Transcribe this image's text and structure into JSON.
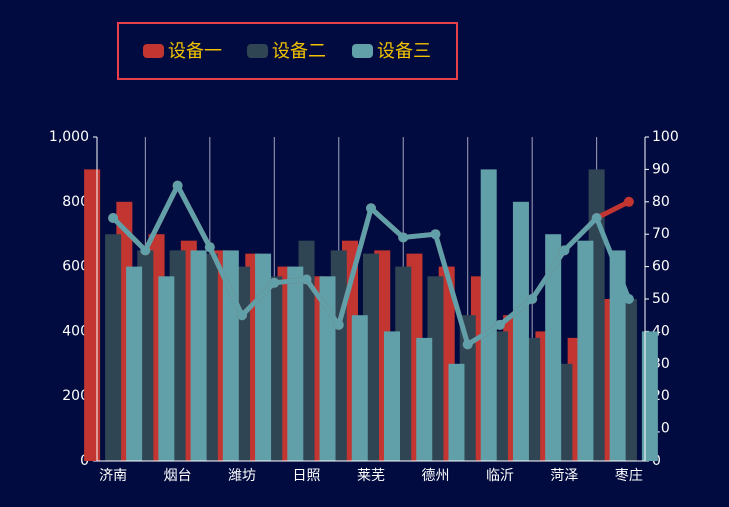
{
  "chart_data": {
    "type": "bar",
    "categories": [
      "济南",
      null,
      "烟台",
      null,
      "潍坊",
      null,
      "日照",
      null,
      "莱芜",
      null,
      "德州",
      null,
      "临沂",
      null,
      "菏泽",
      null,
      "枣庄"
    ],
    "series": [
      {
        "name": "设备一",
        "color": "#c23531",
        "values": [
          900,
          800,
          700,
          680,
          650,
          640,
          600,
          570,
          680,
          650,
          640,
          600,
          570,
          450,
          400,
          380,
          500
        ],
        "line_values": [
          75,
          65,
          85,
          66,
          45,
          55,
          56,
          42,
          78,
          69,
          70,
          36,
          42,
          50,
          65,
          75,
          80
        ]
      },
      {
        "name": "设备二",
        "color": "#2f4554",
        "values": [
          700,
          650,
          650,
          640,
          600,
          570,
          680,
          650,
          640,
          600,
          570,
          450,
          400,
          380,
          300,
          900,
          500
        ]
      },
      {
        "name": "设备三",
        "color": "#61a0a8",
        "values": [
          600,
          570,
          650,
          650,
          640,
          600,
          570,
          450,
          400,
          380,
          300,
          900,
          800,
          700,
          680,
          650,
          400
        ],
        "line_values": [
          75,
          65,
          85,
          66,
          45,
          55,
          56,
          42,
          78,
          69,
          70,
          36,
          42,
          50,
          65,
          75,
          50
        ]
      }
    ],
    "ylim": [
      0,
      1000
    ],
    "yticks": [
      0,
      200,
      400,
      600,
      800,
      {
        "value": 1000,
        "label": "1,000"
      }
    ],
    "y2lim": [
      0,
      100
    ],
    "y2ticks": [
      0,
      10,
      20,
      30,
      40,
      50,
      60,
      70,
      80,
      90,
      100
    ]
  }
}
